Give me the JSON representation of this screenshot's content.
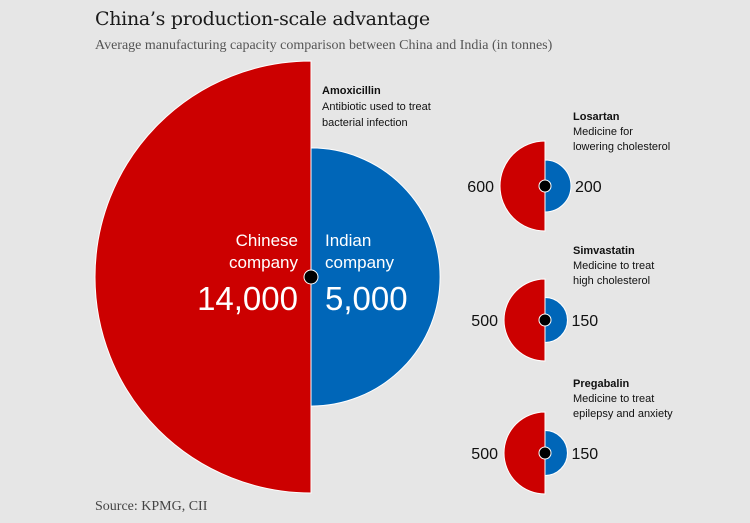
{
  "colors": {
    "china": "#cc0000",
    "india": "#0066b8",
    "background": "#e6e6e6",
    "center_dot": "#000000"
  },
  "header": {
    "title": "China’s production-scale advantage",
    "subtitle": "Average manufacturing capacity comparison between China and India (in tonnes)"
  },
  "footer": {
    "source": "Source: KPMG, CII"
  },
  "chart_data": {
    "type": "pie",
    "title": "China’s production-scale advantage",
    "subtitle": "Average manufacturing capacity comparison between China and India (in tonnes)",
    "encoding": "Half-circles; area proportional to capacity. Left (red) = Chinese company, right (blue) = Indian company",
    "series_names": [
      "Chinese company",
      "Indian company"
    ],
    "main_labels": {
      "china_line1": "Chinese",
      "china_line2": "company",
      "india_line1": "Indian",
      "india_line2": "company"
    },
    "drugs": [
      {
        "name": "Amoxicillin",
        "desc_line1": "Antibiotic used to treat",
        "desc_line2": "bacterial infection",
        "china": 14000,
        "india": 5000,
        "china_label": "14,000",
        "india_label": "5,000"
      },
      {
        "name": "Losartan",
        "desc_line1": "Medicine for",
        "desc_line2": "lowering cholesterol",
        "china": 600,
        "india": 200,
        "china_label": "600",
        "india_label": "200"
      },
      {
        "name": "Simvastatin",
        "desc_line1": "Medicine to treat",
        "desc_line2": "high cholesterol",
        "china": 500,
        "india": 150,
        "china_label": "500",
        "india_label": "150"
      },
      {
        "name": "Pregabalin",
        "desc_line1": "Medicine to treat",
        "desc_line2": "epilepsy and anxiety",
        "china": 500,
        "india": 150,
        "china_label": "500",
        "india_label": "150"
      }
    ],
    "source": "Source: KPMG, CII"
  }
}
